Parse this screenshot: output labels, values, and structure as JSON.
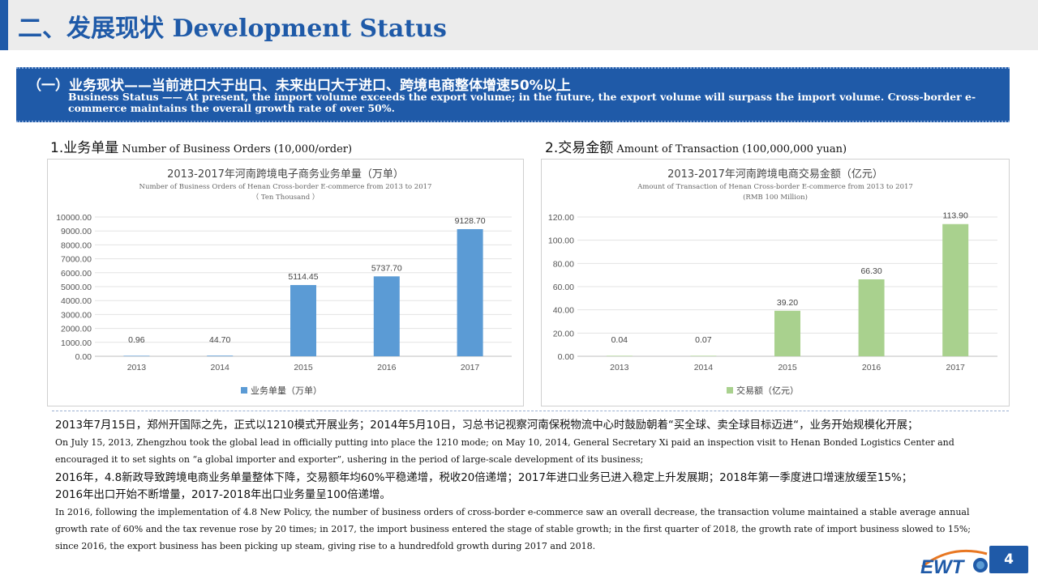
{
  "page": {
    "title": "二、发展现状 Development Status",
    "page_number": "4",
    "logo_text": "EWTO"
  },
  "section": {
    "title_cn": "（一）业务现状——当前进口大于出口、未来出口大于进口、跨境电商整体增速50%以上",
    "title_en": "Business Status —— At present, the import volume exceeds the export volume; in the future, the export volume will surpass the import volume. Cross-border e-commerce maintains the overall growth rate of over 50%."
  },
  "charts_headings": [
    {
      "cn": "1.业务单量",
      "en": " Number of Business Orders (10,000/order)"
    },
    {
      "cn": "2.交易金额",
      "en": " Amount of Transaction (100,000,000 yuan)"
    }
  ],
  "chart_data": [
    {
      "type": "bar",
      "title": "2013-2017年河南跨境电子商务业务单量（万单）",
      "subtitle": "Number of Business Orders of Henan Cross-border E-commerce from 2013 to 2017",
      "subtitle2": "（ Ten Thousand ）",
      "categories": [
        "2013",
        "2014",
        "2015",
        "2016",
        "2017"
      ],
      "values": [
        0.96,
        44.7,
        5114.45,
        5737.7,
        9128.7
      ],
      "value_labels": [
        "0.96",
        "44.70",
        "5114.45",
        "5737.70",
        "9128.70"
      ],
      "ylim": [
        0,
        10000
      ],
      "yticks": [
        "0.00",
        "1000.00",
        "2000.00",
        "3000.00",
        "4000.00",
        "5000.00",
        "6000.00",
        "7000.00",
        "8000.00",
        "9000.00",
        "10000.00"
      ],
      "legend": "业务单量（万单）",
      "legend_position": "bottom",
      "grid": true,
      "color": "#5b9bd5"
    },
    {
      "type": "bar",
      "title": "2013-2017年河南跨境电商交易金额（亿元）",
      "subtitle": "Amount of Transaction of Henan Cross-border E-commerce from 2013 to 2017",
      "subtitle2": "(RMB 100 Million)",
      "categories": [
        "2013",
        "2014",
        "2015",
        "2016",
        "2017"
      ],
      "values": [
        0.04,
        0.07,
        39.2,
        66.3,
        113.9
      ],
      "value_labels": [
        "0.04",
        "0.07",
        "39.20",
        "66.30",
        "113.90"
      ],
      "ylim": [
        0,
        120
      ],
      "yticks": [
        "0.00",
        "20.00",
        "40.00",
        "60.00",
        "80.00",
        "100.00",
        "120.00"
      ],
      "legend": "交易额（亿元）",
      "legend_position": "bottom",
      "grid": true,
      "color": "#a9d18e"
    }
  ],
  "body": {
    "p1_cn": "2013年7月15日，郑州开国际之先，正式以1210模式开展业务；2014年5月10日，习总书记视察河南保税物流中心时鼓励朝着“买全球、卖全球目标迈进“，业务开始规模化开展；",
    "p1_en_1": "On July 15, 2013, Zhengzhou took the global lead in officially putting into place the 1210 mode; on May 10, 2014, General Secretary Xi paid an inspection visit to Henan Bonded Logistics Center and",
    "p1_en_2": "encouraged it to set sights on “a global importer and exporter”, ushering in the period of large-scale development of its business;",
    "p2_cn_1": "2016年，4.8新政导致跨境电商业务单量整体下降，交易额年均60%平稳递增，税收20倍递增；2017年进口业务已进入稳定上升发展期；2018年第一季度进口增速放缓至15%；",
    "p2_cn_2": "2016年出口开始不断增量，2017-2018年出口业务量呈100倍递增。",
    "p2_en_1": "In 2016, following the implementation of 4.8 New Policy, the number of business orders of cross-border e-commerce saw an overall decrease, the transaction volume maintained a stable average annual",
    "p2_en_2": "growth rate of  60% and the tax revenue rose by 20 times; in 2017, the import business entered the stage of stable growth; in the first quarter of 2018, the growth rate of import business slowed to 15%;",
    "p2_en_3": "since 2016, the export business has been picking up steam, giving rise to a hundredfold growth during 2017 and 2018."
  }
}
